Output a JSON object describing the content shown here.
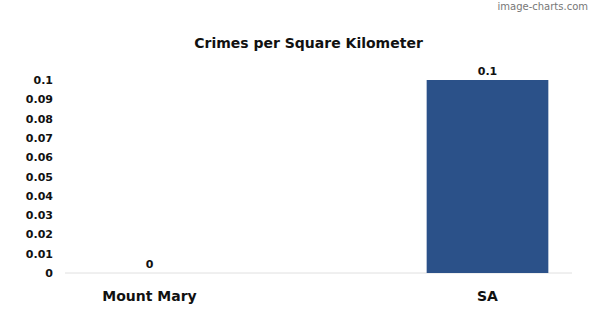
{
  "chart_data": {
    "type": "bar",
    "title": "Crimes per Square Kilometer",
    "watermark": "image-charts.com",
    "categories": [
      "Mount Mary",
      "SA"
    ],
    "values": [
      0,
      0.1
    ],
    "color": "#2b5189",
    "ylim": [
      0,
      0.1
    ],
    "yticks": [
      0,
      0.01,
      0.02,
      0.03,
      0.04,
      0.05,
      0.06,
      0.07,
      0.08,
      0.09,
      0.1
    ],
    "grid": false,
    "data_labels": true
  }
}
